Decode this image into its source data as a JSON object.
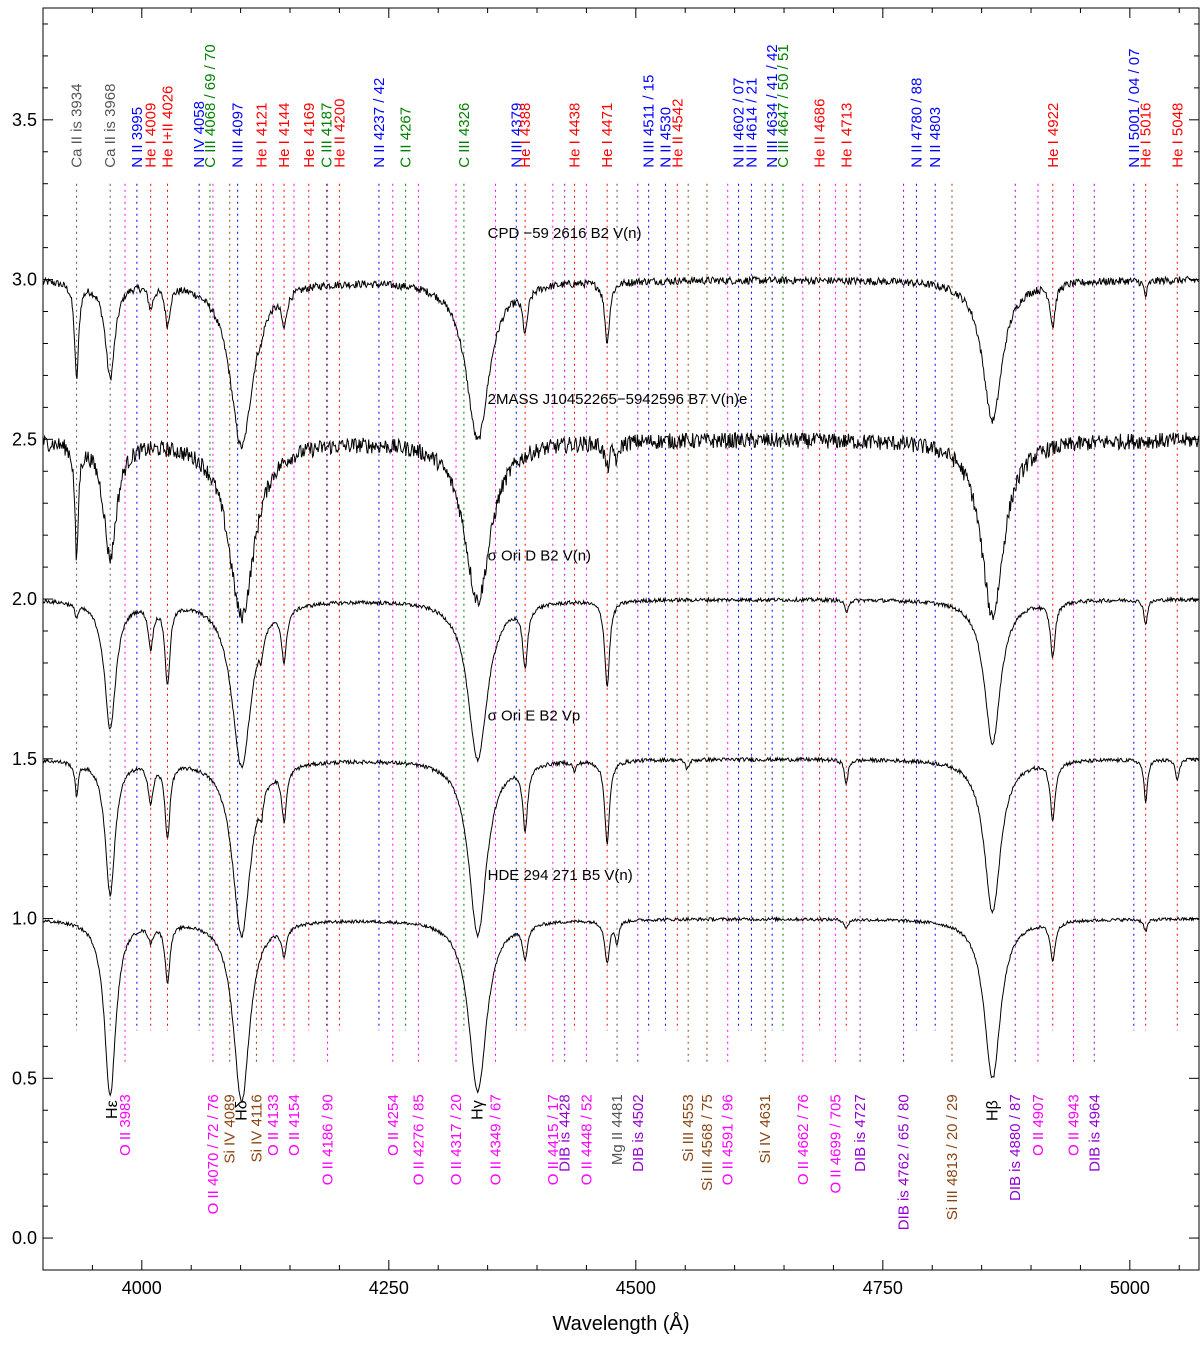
{
  "chart_data": {
    "type": "line",
    "xlabel": "Wavelength (Å)",
    "ylabel": "",
    "xlim": [
      3900,
      5070
    ],
    "ylim": [
      -0.1,
      3.85
    ],
    "x_ticks": [
      4000,
      4250,
      4500,
      4750,
      5000
    ],
    "y_ticks": [
      0.0,
      0.5,
      1.0,
      1.5,
      2.0,
      2.5,
      3.0,
      3.5
    ],
    "x_tick_labels": [
      "4000",
      "4250",
      "4500",
      "4750",
      "5000"
    ],
    "y_tick_labels": [
      "0.0",
      "0.5",
      "1.0",
      "1.5",
      "2.0",
      "2.5",
      "3.0",
      "3.5"
    ],
    "colors": {
      "black": "#000000",
      "blue": "#0000ff",
      "red": "#ff0000",
      "green": "#008000",
      "magenta": "#ff00ff",
      "brown": "#8b4513",
      "purple": "#9400d3",
      "gray": "#555555"
    },
    "series": [
      {
        "name": "CPD −59 2616   B2 V(n)",
        "offset": 3.0,
        "noise": 0.012,
        "label_x": 4350,
        "label_y": 3.13,
        "lines": [
          [
            3934,
            0.3,
            2.5
          ],
          [
            3968,
            0.3,
            6
          ],
          [
            4009,
            0.07,
            3
          ],
          [
            4026,
            0.12,
            3
          ],
          [
            4101,
            0.52,
            14
          ],
          [
            4121,
            0.03,
            2
          ],
          [
            4144,
            0.1,
            3
          ],
          [
            4340,
            0.5,
            14
          ],
          [
            4388,
            0.13,
            3
          ],
          [
            4471,
            0.19,
            3
          ],
          [
            4861,
            0.44,
            12
          ],
          [
            4922,
            0.13,
            3
          ],
          [
            5016,
            0.05,
            2
          ]
        ]
      },
      {
        "name": "2MASS J10452265−5942596   B7 V(n)e",
        "offset": 2.5,
        "noise": 0.025,
        "label_x": 4350,
        "label_y": 2.61,
        "lines": [
          [
            3934,
            0.36,
            2
          ],
          [
            3968,
            0.36,
            8
          ],
          [
            4101,
            0.55,
            16
          ],
          [
            4340,
            0.5,
            16
          ],
          [
            4471,
            0.08,
            3
          ],
          [
            4481,
            0.06,
            2
          ],
          [
            4861,
            0.55,
            14
          ]
        ]
      },
      {
        "name": "σ Ori D    B2 V(n)",
        "offset": 2.0,
        "noise": 0.006,
        "label_x": 4350,
        "label_y": 2.12,
        "lines": [
          [
            3934,
            0.04,
            2
          ],
          [
            3968,
            0.4,
            7
          ],
          [
            4009,
            0.13,
            3
          ],
          [
            4026,
            0.25,
            3
          ],
          [
            4101,
            0.52,
            12
          ],
          [
            4121,
            0.06,
            2
          ],
          [
            4144,
            0.16,
            3
          ],
          [
            4340,
            0.5,
            12
          ],
          [
            4388,
            0.19,
            3
          ],
          [
            4471,
            0.27,
            3
          ],
          [
            4713,
            0.04,
            2
          ],
          [
            4861,
            0.45,
            10
          ],
          [
            4922,
            0.17,
            3
          ],
          [
            5016,
            0.08,
            2
          ]
        ]
      },
      {
        "name": "σ Ori E    B2 Vp",
        "offset": 1.5,
        "noise": 0.006,
        "label_x": 4350,
        "label_y": 1.62,
        "lines": [
          [
            3934,
            0.1,
            2
          ],
          [
            3968,
            0.42,
            6
          ],
          [
            4009,
            0.12,
            3
          ],
          [
            4026,
            0.23,
            3
          ],
          [
            4101,
            0.55,
            11
          ],
          [
            4121,
            0.07,
            2
          ],
          [
            4144,
            0.16,
            3
          ],
          [
            4340,
            0.55,
            11
          ],
          [
            4388,
            0.2,
            3
          ],
          [
            4438,
            0.03,
            2
          ],
          [
            4471,
            0.26,
            3
          ],
          [
            4552,
            0.03,
            2
          ],
          [
            4713,
            0.08,
            2
          ],
          [
            4861,
            0.48,
            10
          ],
          [
            4922,
            0.18,
            3
          ],
          [
            5016,
            0.14,
            2
          ],
          [
            5048,
            0.07,
            2
          ]
        ]
      },
      {
        "name": "HDE 294 271    B5 V(n)",
        "offset": 1.0,
        "noise": 0.005,
        "label_x": 4350,
        "label_y": 1.12,
        "lines": [
          [
            3968,
            0.55,
            7
          ],
          [
            4009,
            0.05,
            3
          ],
          [
            4026,
            0.18,
            3
          ],
          [
            4101,
            0.57,
            10
          ],
          [
            4144,
            0.09,
            3
          ],
          [
            4340,
            0.54,
            11
          ],
          [
            4388,
            0.1,
            3
          ],
          [
            4471,
            0.13,
            3
          ],
          [
            4481,
            0.07,
            2
          ],
          [
            4713,
            0.03,
            2
          ],
          [
            4861,
            0.5,
            10
          ],
          [
            4922,
            0.12,
            3
          ],
          [
            5016,
            0.04,
            2
          ]
        ]
      }
    ],
    "line_ids_top": [
      {
        "text": "Ca II is 3934",
        "x": 3934,
        "color": "gray"
      },
      {
        "text": "Ca II is 3968",
        "x": 3968,
        "color": "gray"
      },
      {
        "text": "N II 3995",
        "x": 3995,
        "color": "blue"
      },
      {
        "text": "He I 4009",
        "x": 4009,
        "color": "red"
      },
      {
        "text": "He I+II 4026",
        "x": 4026,
        "color": "red"
      },
      {
        "text": "N IV 4058",
        "x": 4058,
        "color": "blue"
      },
      {
        "text": "C III 4068 / 69 / 70",
        "x": 4069,
        "color": "green"
      },
      {
        "text": "N III 4097",
        "x": 4097,
        "color": "blue"
      },
      {
        "text": "He I 4121",
        "x": 4121,
        "color": "red"
      },
      {
        "text": "He I 4144",
        "x": 4144,
        "color": "red"
      },
      {
        "text": "He I 4169",
        "x": 4169,
        "color": "red"
      },
      {
        "text": "C III 4187",
        "x": 4187,
        "color": "green"
      },
      {
        "text": "He II 4200",
        "x": 4200,
        "color": "red"
      },
      {
        "text": "N II 4237 / 42",
        "x": 4240,
        "color": "blue"
      },
      {
        "text": "C II 4267",
        "x": 4267,
        "color": "green"
      },
      {
        "text": "C III 4326",
        "x": 4326,
        "color": "green"
      },
      {
        "text": "N III 4379",
        "x": 4379,
        "color": "blue"
      },
      {
        "text": "He I 4388",
        "x": 4388,
        "color": "red"
      },
      {
        "text": "He I 4438",
        "x": 4438,
        "color": "red"
      },
      {
        "text": "He I 4471",
        "x": 4471,
        "color": "red"
      },
      {
        "text": "N III 4511 / 15",
        "x": 4513,
        "color": "blue"
      },
      {
        "text": "N II 4530",
        "x": 4530,
        "color": "blue"
      },
      {
        "text": "He II 4542",
        "x": 4542,
        "color": "red"
      },
      {
        "text": "N II 4602 / 07",
        "x": 4604,
        "color": "blue"
      },
      {
        "text": "N II 4614 / 21",
        "x": 4617,
        "color": "blue"
      },
      {
        "text": "N III 4634 / 41 / 42",
        "x": 4638,
        "color": "blue"
      },
      {
        "text": "C III 4647 / 50 / 51",
        "x": 4649,
        "color": "green"
      },
      {
        "text": "He II 4686",
        "x": 4686,
        "color": "red"
      },
      {
        "text": "He I 4713",
        "x": 4713,
        "color": "red"
      },
      {
        "text": "N II 4780 / 88",
        "x": 4784,
        "color": "blue"
      },
      {
        "text": "N II 4803",
        "x": 4803,
        "color": "blue"
      },
      {
        "text": "He I 4922",
        "x": 4922,
        "color": "red"
      },
      {
        "text": "N II 5001 / 04 / 07",
        "x": 5004,
        "color": "blue"
      },
      {
        "text": "He I 5016",
        "x": 5016,
        "color": "red"
      },
      {
        "text": "He I 5048",
        "x": 5048,
        "color": "red"
      }
    ],
    "line_ids_bottom": [
      {
        "text": "Hε",
        "x": 3970,
        "color": "black",
        "rot": false
      },
      {
        "text": "O II 3983",
        "x": 3983,
        "color": "magenta",
        "rot": true
      },
      {
        "text": "O II 4070 / 72 / 76",
        "x": 4072,
        "color": "magenta",
        "rot": true
      },
      {
        "text": "Si IV 4089",
        "x": 4089,
        "color": "brown",
        "rot": true
      },
      {
        "text": "Hδ",
        "x": 4101,
        "color": "black",
        "rot": false
      },
      {
        "text": "Si IV 4116",
        "x": 4116,
        "color": "brown",
        "rot": true
      },
      {
        "text": "O II 4133",
        "x": 4133,
        "color": "magenta",
        "rot": true
      },
      {
        "text": "O II 4154",
        "x": 4154,
        "color": "magenta",
        "rot": true
      },
      {
        "text": "O II 4186 / 90",
        "x": 4188,
        "color": "magenta",
        "rot": true
      },
      {
        "text": "O II 4254",
        "x": 4254,
        "color": "magenta",
        "rot": true
      },
      {
        "text": "O II 4276 / 85",
        "x": 4280,
        "color": "magenta",
        "rot": true
      },
      {
        "text": "O II 4317 / 20",
        "x": 4318,
        "color": "magenta",
        "rot": true
      },
      {
        "text": "Hγ",
        "x": 4340,
        "color": "black",
        "rot": false
      },
      {
        "text": "O II 4349 / 67",
        "x": 4358,
        "color": "magenta",
        "rot": true
      },
      {
        "text": "O II 4415 / 17",
        "x": 4416,
        "color": "magenta",
        "rot": true
      },
      {
        "text": "DIB is 4428",
        "x": 4428,
        "color": "purple",
        "rot": true
      },
      {
        "text": "O II 4448 / 52",
        "x": 4450,
        "color": "magenta",
        "rot": true
      },
      {
        "text": "Mg II 4481",
        "x": 4481,
        "color": "gray",
        "rot": true
      },
      {
        "text": "DIB is 4502",
        "x": 4502,
        "color": "purple",
        "rot": true
      },
      {
        "text": "Si III 4553",
        "x": 4553,
        "color": "brown",
        "rot": true
      },
      {
        "text": "Si III 4568 / 75",
        "x": 4572,
        "color": "brown",
        "rot": true
      },
      {
        "text": "O II 4591 / 96",
        "x": 4593,
        "color": "magenta",
        "rot": true
      },
      {
        "text": "Si IV 4631",
        "x": 4631,
        "color": "brown",
        "rot": true
      },
      {
        "text": "O II 4662 / 76",
        "x": 4669,
        "color": "magenta",
        "rot": true
      },
      {
        "text": "O II 4699 / 705",
        "x": 4702,
        "color": "magenta",
        "rot": true
      },
      {
        "text": "DIB is 4727",
        "x": 4727,
        "color": "purple",
        "rot": true
      },
      {
        "text": "DIB is 4762 / 65 / 80",
        "x": 4771,
        "color": "purple",
        "rot": true
      },
      {
        "text": "Si III 4813 / 20 / 29",
        "x": 4820,
        "color": "brown",
        "rot": true
      },
      {
        "text": "Hβ",
        "x": 4861,
        "color": "black",
        "rot": false
      },
      {
        "text": "DIB is 4880 / 87",
        "x": 4884,
        "color": "purple",
        "rot": true
      },
      {
        "text": "O II 4907",
        "x": 4907,
        "color": "magenta",
        "rot": true
      },
      {
        "text": "O II 4943",
        "x": 4943,
        "color": "magenta",
        "rot": true
      },
      {
        "text": "DIB is 4964",
        "x": 4964,
        "color": "purple",
        "rot": true
      }
    ]
  }
}
